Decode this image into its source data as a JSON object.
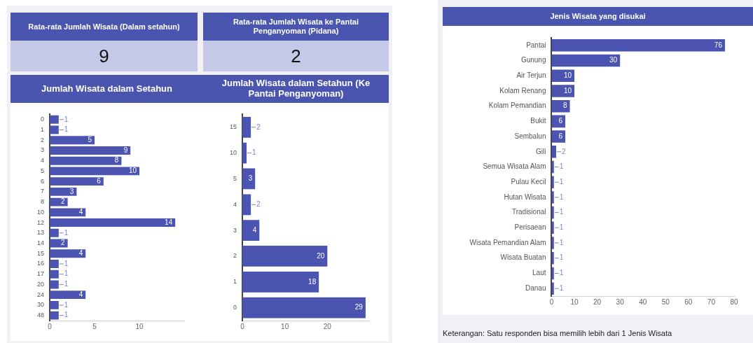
{
  "chart_data": [
    {
      "type": "other",
      "title": "Rata-rata Jumlah Wisata (Dalam setahun)",
      "annotations": [
        "9"
      ]
    },
    {
      "type": "other",
      "title": "Rata-rata Jumlah Wisata ke Pantai Penganyoman (Pidana)",
      "annotations": [
        "2"
      ]
    },
    {
      "type": "bar",
      "orientation": "horizontal",
      "title": "Jumlah Wisata dalam Setahun",
      "categories": [
        "0",
        "1",
        "2",
        "3",
        "4",
        "5",
        "6",
        "7",
        "8",
        "10",
        "12",
        "13",
        "14",
        "15",
        "16",
        "17",
        "20",
        "24",
        "30",
        "48"
      ],
      "values": [
        1,
        1,
        5,
        9,
        8,
        10,
        6,
        3,
        2,
        4,
        14,
        1,
        2,
        4,
        1,
        1,
        1,
        4,
        1,
        1
      ],
      "color": "#4b55b1",
      "xlim": [
        0,
        15
      ],
      "xticks": [
        0,
        5,
        10
      ],
      "data_labels": true
    },
    {
      "type": "bar",
      "orientation": "horizontal",
      "title": "Jumlah Wisata dalam Setahun (Ke Pantai Penganyoman)",
      "categories": [
        "15",
        "10",
        "5",
        "4",
        "3",
        "2",
        "1",
        "0"
      ],
      "values": [
        2,
        1,
        3,
        2,
        4,
        20,
        18,
        29
      ],
      "color": "#4b55b1",
      "xlim": [
        0,
        30
      ],
      "xticks": [
        0,
        10,
        20
      ],
      "data_labels": true
    },
    {
      "type": "bar",
      "orientation": "horizontal",
      "title": "Jenis Wisata yang disukai",
      "categories": [
        "Pantai",
        "Gunung",
        "Air Terjun",
        "Kolam Renang",
        "Kolam Pemandian",
        "Bukit",
        "Sembalun",
        "Gili",
        "Semua Wisata Alam",
        "Pulau Kecil",
        "Hutan Wisata",
        "Tradisional",
        "Perisaean",
        "Wisata Pemandian Alam",
        "Wisata Buatan",
        "Laut",
        "Danau"
      ],
      "values": [
        76,
        30,
        10,
        10,
        8,
        6,
        6,
        2,
        1,
        1,
        1,
        1,
        1,
        1,
        1,
        1,
        1
      ],
      "color": "#4b55b1",
      "xlim": [
        0,
        80
      ],
      "xticks": [
        0,
        10,
        20,
        30,
        40,
        50,
        60,
        70,
        80
      ],
      "data_labels": true,
      "annotations": [
        "Keterangan: Satu responden bisa memilih lebih dari 1 Jenis Wisata"
      ]
    }
  ]
}
